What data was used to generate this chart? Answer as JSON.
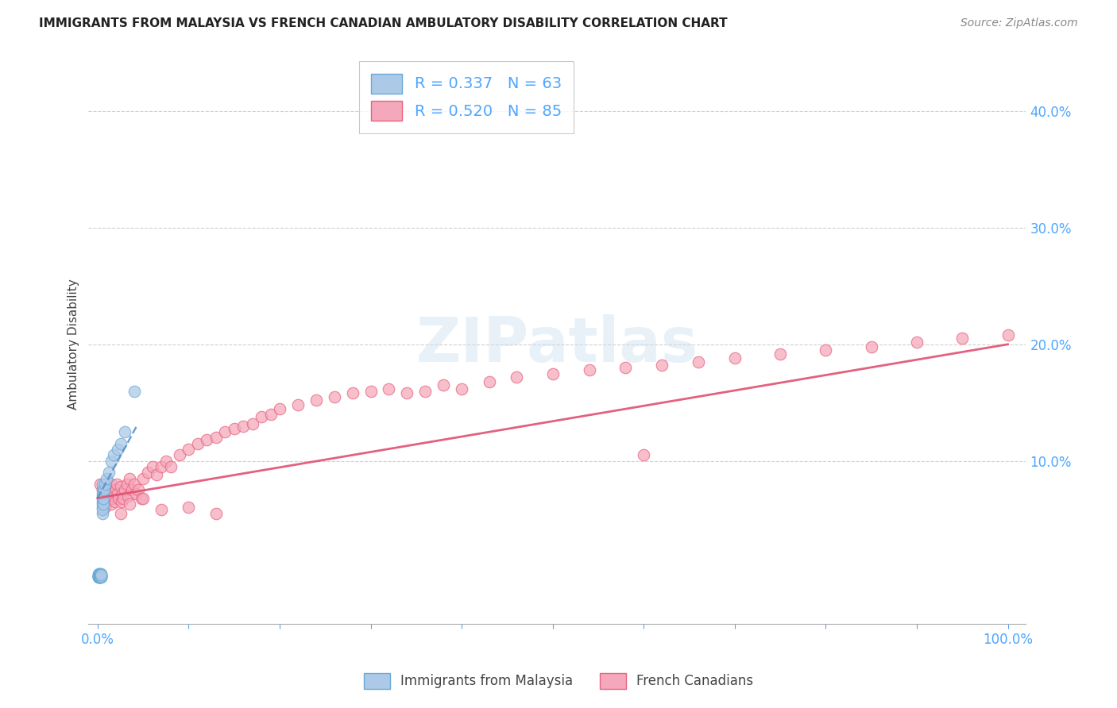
{
  "title": "IMMIGRANTS FROM MALAYSIA VS FRENCH CANADIAN AMBULATORY DISABILITY CORRELATION CHART",
  "source": "Source: ZipAtlas.com",
  "ylabel": "Ambulatory Disability",
  "watermark": "ZIPatlas",
  "blue_R": 0.337,
  "blue_N": 63,
  "pink_R": 0.52,
  "pink_N": 85,
  "blue_label": "Immigrants from Malaysia",
  "pink_label": "French Canadians",
  "xlim": [
    -0.01,
    1.02
  ],
  "ylim": [
    -0.04,
    0.44
  ],
  "xtick_positions": [
    0.0,
    1.0
  ],
  "xtick_labels": [
    "0.0%",
    "100.0%"
  ],
  "ytick_positions": [
    0.1,
    0.2,
    0.3,
    0.4
  ],
  "ytick_labels": [
    "10.0%",
    "20.0%",
    "30.0%",
    "40.0%"
  ],
  "grid_yticks": [
    0.1,
    0.2,
    0.3,
    0.4
  ],
  "blue_color": "#adc9e8",
  "pink_color": "#f5a8bc",
  "blue_edge_color": "#6aaad4",
  "pink_edge_color": "#e8637e",
  "blue_line_color": "#5590c8",
  "pink_line_color": "#e05070",
  "grid_color": "#d0d0d0",
  "title_color": "#222222",
  "tick_color": "#4da6ff",
  "background_color": "#ffffff",
  "blue_scatter_x": [
    0.001,
    0.001,
    0.001,
    0.001,
    0.001,
    0.001,
    0.001,
    0.001,
    0.001,
    0.001,
    0.002,
    0.002,
    0.002,
    0.002,
    0.002,
    0.002,
    0.002,
    0.002,
    0.002,
    0.002,
    0.003,
    0.003,
    0.003,
    0.003,
    0.003,
    0.003,
    0.003,
    0.003,
    0.003,
    0.003,
    0.004,
    0.004,
    0.004,
    0.004,
    0.004,
    0.004,
    0.004,
    0.004,
    0.004,
    0.004,
    0.005,
    0.005,
    0.005,
    0.005,
    0.005,
    0.005,
    0.005,
    0.005,
    0.005,
    0.005,
    0.006,
    0.006,
    0.006,
    0.007,
    0.008,
    0.01,
    0.012,
    0.015,
    0.018,
    0.022,
    0.025,
    0.03,
    0.04
  ],
  "blue_scatter_y": [
    0.0,
    0.001,
    0.002,
    0.001,
    0.0,
    0.001,
    0.002,
    0.003,
    0.001,
    0.0,
    0.0,
    0.001,
    0.002,
    0.0,
    0.001,
    0.003,
    0.002,
    0.001,
    0.0,
    0.001,
    0.001,
    0.002,
    0.0,
    0.001,
    0.003,
    0.002,
    0.001,
    0.0,
    0.002,
    0.001,
    0.001,
    0.0,
    0.002,
    0.001,
    0.003,
    0.002,
    0.001,
    0.0,
    0.001,
    0.002,
    0.055,
    0.06,
    0.065,
    0.07,
    0.075,
    0.08,
    0.063,
    0.058,
    0.068,
    0.072,
    0.063,
    0.072,
    0.068,
    0.075,
    0.08,
    0.085,
    0.09,
    0.1,
    0.105,
    0.11,
    0.115,
    0.125,
    0.16
  ],
  "pink_scatter_x": [
    0.003,
    0.005,
    0.006,
    0.007,
    0.008,
    0.009,
    0.01,
    0.01,
    0.011,
    0.012,
    0.013,
    0.014,
    0.015,
    0.015,
    0.016,
    0.017,
    0.018,
    0.019,
    0.02,
    0.021,
    0.022,
    0.023,
    0.025,
    0.026,
    0.027,
    0.028,
    0.03,
    0.032,
    0.033,
    0.035,
    0.038,
    0.04,
    0.042,
    0.045,
    0.048,
    0.05,
    0.055,
    0.06,
    0.065,
    0.07,
    0.075,
    0.08,
    0.09,
    0.1,
    0.11,
    0.12,
    0.13,
    0.14,
    0.15,
    0.16,
    0.17,
    0.18,
    0.19,
    0.2,
    0.22,
    0.24,
    0.26,
    0.28,
    0.3,
    0.32,
    0.34,
    0.36,
    0.38,
    0.4,
    0.43,
    0.46,
    0.5,
    0.54,
    0.58,
    0.62,
    0.66,
    0.7,
    0.75,
    0.8,
    0.85,
    0.9,
    0.95,
    1.0,
    0.025,
    0.035,
    0.05,
    0.07,
    0.1,
    0.13,
    0.6
  ],
  "pink_scatter_y": [
    0.08,
    0.075,
    0.065,
    0.07,
    0.06,
    0.075,
    0.065,
    0.08,
    0.07,
    0.075,
    0.068,
    0.072,
    0.063,
    0.08,
    0.068,
    0.075,
    0.07,
    0.065,
    0.075,
    0.08,
    0.072,
    0.068,
    0.078,
    0.065,
    0.072,
    0.068,
    0.075,
    0.08,
    0.07,
    0.085,
    0.075,
    0.08,
    0.072,
    0.075,
    0.068,
    0.085,
    0.09,
    0.095,
    0.088,
    0.095,
    0.1,
    0.095,
    0.105,
    0.11,
    0.115,
    0.118,
    0.12,
    0.125,
    0.128,
    0.13,
    0.132,
    0.138,
    0.14,
    0.145,
    0.148,
    0.152,
    0.155,
    0.158,
    0.16,
    0.162,
    0.158,
    0.16,
    0.165,
    0.162,
    0.168,
    0.172,
    0.175,
    0.178,
    0.18,
    0.182,
    0.185,
    0.188,
    0.192,
    0.195,
    0.198,
    0.202,
    0.205,
    0.208,
    0.055,
    0.063,
    0.068,
    0.058,
    0.06,
    0.055,
    0.105
  ],
  "blue_line_x0": 0.0,
  "blue_line_x1": 0.043,
  "blue_line_y0": 0.068,
  "blue_line_y1": 0.13,
  "pink_line_x0": 0.0,
  "pink_line_x1": 1.0,
  "pink_line_y0": 0.068,
  "pink_line_y1": 0.2
}
